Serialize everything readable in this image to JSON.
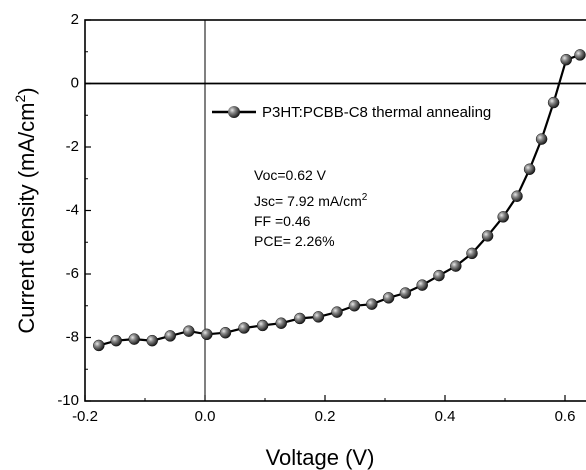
{
  "chart_data": {
    "type": "line",
    "xlabel": "Voltage (V)",
    "ylabel_main": "Current density (mA/cm",
    "ylabel_sup": "2",
    "ylabel_close": ")",
    "xlim": [
      -0.2,
      0.65
    ],
    "ylim": [
      -10,
      2
    ],
    "xticks": [
      -0.2,
      0.0,
      0.2,
      0.4,
      0.6
    ],
    "xtick_labels": [
      "-0.2",
      "0.0",
      "0.2",
      "0.4",
      "0.6"
    ],
    "yticks": [
      -10,
      -8,
      -6,
      -4,
      -2,
      0,
      2
    ],
    "ytick_labels": [
      "-10",
      "-8",
      "-6",
      "-4",
      "-2",
      "0",
      "2"
    ],
    "legend_position": "top-right",
    "reference_lines": {
      "y": 0,
      "x": 0
    },
    "series": [
      {
        "name": "P3HT:PCBB-C8 thermal annealing",
        "x": [
          -0.177,
          -0.148,
          -0.118,
          -0.088,
          -0.058,
          -0.027,
          0.003,
          0.034,
          0.065,
          0.096,
          0.127,
          0.158,
          0.189,
          0.22,
          0.249,
          0.278,
          0.306,
          0.334,
          0.362,
          0.39,
          0.418,
          0.445,
          0.471,
          0.497,
          0.52,
          0.541,
          0.561,
          0.581,
          0.602,
          0.625
        ],
        "y": [
          -8.25,
          -8.1,
          -8.05,
          -8.1,
          -7.95,
          -7.8,
          -7.9,
          -7.85,
          -7.7,
          -7.62,
          -7.55,
          -7.4,
          -7.35,
          -7.2,
          -7.0,
          -6.95,
          -6.75,
          -6.6,
          -6.35,
          -6.05,
          -5.75,
          -5.35,
          -4.8,
          -4.2,
          -3.55,
          -2.7,
          -1.75,
          -0.6,
          0.75,
          0.9
        ]
      }
    ],
    "annotations": [
      {
        "main": "Voc=0.62 V",
        "sup": ""
      },
      {
        "main": "Jsc= 7.92 mA/cm",
        "sup": "2"
      },
      {
        "main": "FF =0.46",
        "sup": ""
      },
      {
        "main": "PCE= 2.26%",
        "sup": ""
      }
    ]
  }
}
